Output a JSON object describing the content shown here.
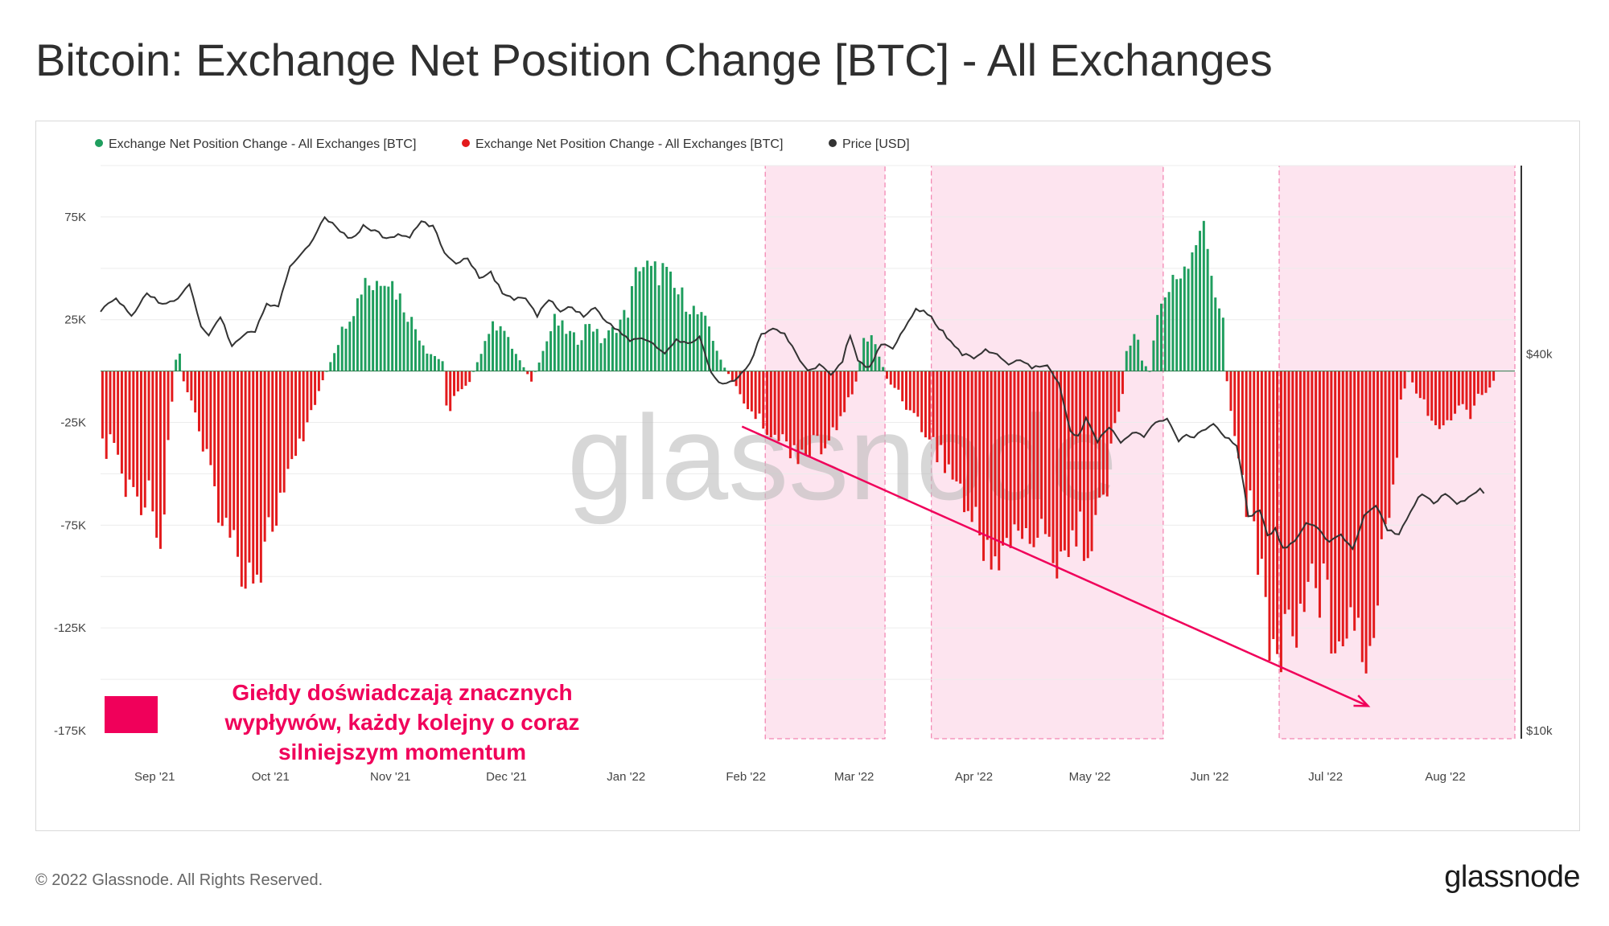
{
  "title": "Bitcoin: Exchange Net Position Change [BTC] - All Exchanges",
  "footer": {
    "copyright": "© 2022 Glassnode. All Rights Reserved.",
    "brand": "glassnode"
  },
  "watermark": "glassnode",
  "annotation": {
    "lines": [
      "Giełdy doświadczają znacznych",
      "wypływów,  każdy kolejny o coraz",
      "silniejszym momentum"
    ],
    "color": "#f0005a"
  },
  "colors": {
    "inflow": "#1f9e5e",
    "outflow": "#e31a1c",
    "price": "#333333",
    "band": "#fde4ef",
    "band_border": "#f06aa0",
    "arrow": "#f0005a"
  },
  "chart_data": {
    "type": "bar",
    "title": "Bitcoin: Exchange Net Position Change [BTC] - All Exchanges",
    "legend": [
      {
        "label": "Exchange Net Position Change - All Exchanges [BTC]",
        "color": "#1f9e5e"
      },
      {
        "label": "Exchange Net Position Change - All Exchanges [BTC]",
        "color": "#e31a1c"
      },
      {
        "label": "Price [USD]",
        "color": "#333333"
      }
    ],
    "ylim": [
      -175000,
      100000
    ],
    "y_ticks": [
      {
        "value": 75000,
        "label": "75K"
      },
      {
        "value": 25000,
        "label": "25K"
      },
      {
        "value": -25000,
        "label": "-25K"
      },
      {
        "value": -75000,
        "label": "-75K"
      },
      {
        "value": -125000,
        "label": "-125K"
      },
      {
        "value": -175000,
        "label": "-175K"
      }
    ],
    "price_axis": {
      "scale": "log",
      "ylim": [
        10000,
        80000
      ],
      "ticks": [
        {
          "value": 40000,
          "label": "$40k"
        },
        {
          "value": 10000,
          "label": "$10k"
        }
      ]
    },
    "x_ticks": [
      {
        "day": 14,
        "label": "Sep '21"
      },
      {
        "day": 44,
        "label": "Oct '21"
      },
      {
        "day": 75,
        "label": "Nov '21"
      },
      {
        "day": 105,
        "label": "Dec '21"
      },
      {
        "day": 136,
        "label": "Jan '22"
      },
      {
        "day": 167,
        "label": "Feb '22"
      },
      {
        "day": 195,
        "label": "Mar '22"
      },
      {
        "day": 226,
        "label": "Apr '22"
      },
      {
        "day": 256,
        "label": "May '22"
      },
      {
        "day": 287,
        "label": "Jun '22"
      },
      {
        "day": 317,
        "label": "Jul '22"
      },
      {
        "day": 348,
        "label": "Aug '22"
      }
    ],
    "x_range_days": [
      0,
      366
    ],
    "highlight_ranges_days": [
      [
        172,
        203
      ],
      [
        215,
        275
      ],
      [
        305,
        366
      ]
    ],
    "trend_arrow_days": {
      "from": {
        "day": 166,
        "value": -27000
      },
      "to": {
        "day": 328,
        "value": -163000
      }
    },
    "net_position_keyframes": [
      [
        0,
        -40000
      ],
      [
        3,
        -35000
      ],
      [
        6,
        -60000
      ],
      [
        10,
        -62000
      ],
      [
        13,
        -60000
      ],
      [
        15,
        -90000
      ],
      [
        17,
        -35000
      ],
      [
        19,
        6000
      ],
      [
        20,
        8000
      ],
      [
        21,
        -5000
      ],
      [
        23,
        -15000
      ],
      [
        26,
        -40000
      ],
      [
        30,
        -65000
      ],
      [
        33,
        -85000
      ],
      [
        37,
        -95000
      ],
      [
        40,
        -98000
      ],
      [
        43,
        -80000
      ],
      [
        47,
        -60000
      ],
      [
        50,
        -45000
      ],
      [
        53,
        -25000
      ],
      [
        56,
        -10000
      ],
      [
        60,
        10000
      ],
      [
        63,
        25000
      ],
      [
        66,
        35000
      ],
      [
        68,
        48000
      ],
      [
        70,
        42000
      ],
      [
        73,
        50000
      ],
      [
        76,
        40000
      ],
      [
        80,
        25000
      ],
      [
        84,
        10000
      ],
      [
        88,
        5000
      ],
      [
        89,
        -15000
      ],
      [
        90,
        -18000
      ],
      [
        92,
        -10000
      ],
      [
        95,
        -5000
      ],
      [
        98,
        10000
      ],
      [
        100,
        20000
      ],
      [
        103,
        25000
      ],
      [
        105,
        15000
      ],
      [
        108,
        5000
      ],
      [
        111,
        -5000
      ],
      [
        114,
        10000
      ],
      [
        117,
        25000
      ],
      [
        120,
        20000
      ],
      [
        123,
        15000
      ],
      [
        126,
        25000
      ],
      [
        129,
        15000
      ],
      [
        132,
        20000
      ],
      [
        136,
        30000
      ],
      [
        139,
        55000
      ],
      [
        142,
        48000
      ],
      [
        145,
        50000
      ],
      [
        148,
        40000
      ],
      [
        151,
        35000
      ],
      [
        154,
        28000
      ],
      [
        157,
        22000
      ],
      [
        160,
        5000
      ],
      [
        163,
        -5000
      ],
      [
        166,
        -15000
      ],
      [
        170,
        -25000
      ],
      [
        173,
        -30000
      ],
      [
        176,
        -35000
      ],
      [
        180,
        -40000
      ],
      [
        184,
        -38000
      ],
      [
        188,
        -35000
      ],
      [
        191,
        -25000
      ],
      [
        193,
        -15000
      ],
      [
        195,
        -5000
      ],
      [
        197,
        15000
      ],
      [
        199,
        18000
      ],
      [
        201,
        8000
      ],
      [
        203,
        -4000
      ],
      [
        206,
        -10000
      ],
      [
        209,
        -20000
      ],
      [
        213,
        -30000
      ],
      [
        217,
        -42000
      ],
      [
        221,
        -55000
      ],
      [
        225,
        -75000
      ],
      [
        228,
        -85000
      ],
      [
        232,
        -92000
      ],
      [
        235,
        -85000
      ],
      [
        238,
        -80000
      ],
      [
        241,
        -82000
      ],
      [
        244,
        -85000
      ],
      [
        247,
        -90000
      ],
      [
        250,
        -85000
      ],
      [
        253,
        -82000
      ],
      [
        256,
        -80000
      ],
      [
        258,
        -70000
      ],
      [
        260,
        -60000
      ],
      [
        262,
        -25000
      ],
      [
        264,
        -10000
      ],
      [
        265,
        10000
      ],
      [
        267,
        20000
      ],
      [
        268,
        15000
      ],
      [
        269,
        5000
      ],
      [
        271,
        0
      ],
      [
        273,
        30000
      ],
      [
        276,
        40000
      ],
      [
        279,
        50000
      ],
      [
        282,
        62000
      ],
      [
        284,
        73000
      ],
      [
        286,
        60000
      ],
      [
        288,
        40000
      ],
      [
        290,
        25000
      ],
      [
        291,
        -5000
      ],
      [
        293,
        -30000
      ],
      [
        295,
        -55000
      ],
      [
        297,
        -70000
      ],
      [
        299,
        -90000
      ],
      [
        301,
        -120000
      ],
      [
        303,
        -135000
      ],
      [
        305,
        -140000
      ],
      [
        307,
        -125000
      ],
      [
        309,
        -120000
      ],
      [
        311,
        -115000
      ],
      [
        313,
        -100000
      ],
      [
        316,
        -110000
      ],
      [
        318,
        -125000
      ],
      [
        321,
        -120000
      ],
      [
        324,
        -125000
      ],
      [
        327,
        -140000
      ],
      [
        329,
        -120000
      ],
      [
        332,
        -70000
      ],
      [
        334,
        -60000
      ],
      [
        336,
        -15000
      ],
      [
        338,
        0
      ],
      [
        340,
        -10000
      ],
      [
        342,
        -15000
      ],
      [
        344,
        -25000
      ],
      [
        347,
        -30000
      ],
      [
        350,
        -20000
      ],
      [
        352,
        -15000
      ],
      [
        354,
        -25000
      ],
      [
        356,
        -10000
      ],
      [
        358,
        -12000
      ],
      [
        360,
        -5000
      ]
    ],
    "price_usd_keyframes": [
      [
        0,
        47000
      ],
      [
        4,
        49000
      ],
      [
        8,
        46000
      ],
      [
        12,
        50000
      ],
      [
        16,
        48000
      ],
      [
        20,
        49000
      ],
      [
        23,
        52000
      ],
      [
        26,
        44000
      ],
      [
        28,
        43000
      ],
      [
        31,
        46000
      ],
      [
        34,
        41000
      ],
      [
        37,
        43000
      ],
      [
        40,
        43500
      ],
      [
        43,
        48000
      ],
      [
        46,
        47500
      ],
      [
        49,
        55000
      ],
      [
        52,
        58000
      ],
      [
        55,
        61000
      ],
      [
        58,
        66000
      ],
      [
        62,
        63000
      ],
      [
        65,
        61000
      ],
      [
        68,
        64000
      ],
      [
        71,
        63000
      ],
      [
        74,
        61000
      ],
      [
        77,
        62000
      ],
      [
        80,
        61500
      ],
      [
        83,
        65000
      ],
      [
        86,
        64000
      ],
      [
        89,
        58000
      ],
      [
        92,
        56000
      ],
      [
        95,
        57000
      ],
      [
        98,
        53000
      ],
      [
        101,
        54000
      ],
      [
        104,
        50000
      ],
      [
        107,
        49000
      ],
      [
        110,
        49000
      ],
      [
        113,
        46000
      ],
      [
        116,
        49000
      ],
      [
        119,
        47000
      ],
      [
        122,
        47500
      ],
      [
        125,
        46000
      ],
      [
        128,
        47500
      ],
      [
        131,
        45000
      ],
      [
        134,
        43500
      ],
      [
        137,
        42000
      ],
      [
        140,
        42500
      ],
      [
        143,
        41500
      ],
      [
        146,
        40000
      ],
      [
        149,
        42000
      ],
      [
        152,
        41500
      ],
      [
        155,
        42500
      ],
      [
        158,
        37500
      ],
      [
        160,
        36000
      ],
      [
        162,
        35800
      ],
      [
        165,
        36500
      ],
      [
        168,
        38500
      ],
      [
        171,
        43000
      ],
      [
        174,
        44000
      ],
      [
        177,
        43000
      ],
      [
        180,
        40000
      ],
      [
        183,
        37500
      ],
      [
        186,
        38500
      ],
      [
        189,
        37000
      ],
      [
        192,
        39000
      ],
      [
        194,
        43000
      ],
      [
        196,
        39000
      ],
      [
        199,
        38000
      ],
      [
        202,
        41500
      ],
      [
        205,
        41000
      ],
      [
        208,
        44000
      ],
      [
        211,
        47000
      ],
      [
        214,
        46500
      ],
      [
        217,
        44000
      ],
      [
        220,
        42000
      ],
      [
        223,
        40000
      ],
      [
        226,
        39500
      ],
      [
        229,
        40500
      ],
      [
        232,
        40000
      ],
      [
        235,
        38500
      ],
      [
        238,
        39000
      ],
      [
        241,
        38000
      ],
      [
        245,
        38200
      ],
      [
        248,
        36000
      ],
      [
        251,
        30000
      ],
      [
        253,
        29500
      ],
      [
        255,
        31500
      ],
      [
        258,
        29000
      ],
      [
        261,
        30500
      ],
      [
        264,
        29000
      ],
      [
        267,
        30000
      ],
      [
        270,
        29500
      ],
      [
        273,
        31000
      ],
      [
        276,
        31500
      ],
      [
        279,
        29000
      ],
      [
        281,
        29800
      ],
      [
        283,
        29500
      ],
      [
        285,
        30000
      ],
      [
        288,
        31000
      ],
      [
        291,
        29500
      ],
      [
        294,
        28500
      ],
      [
        297,
        22000
      ],
      [
        300,
        22500
      ],
      [
        302,
        20500
      ],
      [
        304,
        21000
      ],
      [
        306,
        19500
      ],
      [
        309,
        20000
      ],
      [
        312,
        21500
      ],
      [
        315,
        21000
      ],
      [
        318,
        20000
      ],
      [
        321,
        20500
      ],
      [
        324,
        19500
      ],
      [
        327,
        22000
      ],
      [
        330,
        23000
      ],
      [
        333,
        21000
      ],
      [
        336,
        20500
      ],
      [
        339,
        22500
      ],
      [
        342,
        24000
      ],
      [
        345,
        23000
      ],
      [
        348,
        24000
      ],
      [
        351,
        23000
      ],
      [
        354,
        23500
      ],
      [
        357,
        24500
      ],
      [
        358,
        24000
      ]
    ]
  }
}
